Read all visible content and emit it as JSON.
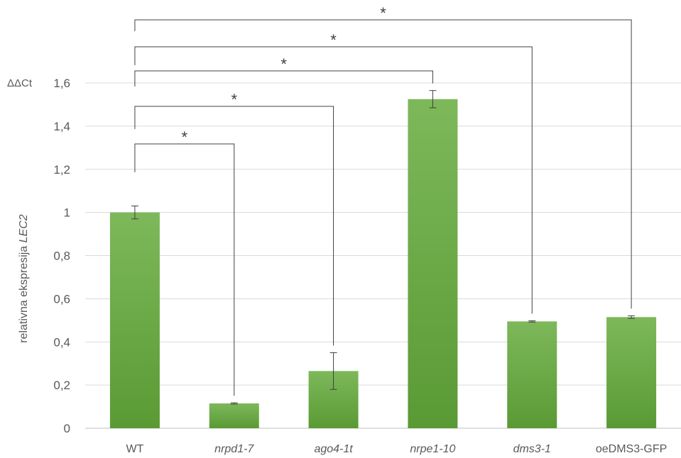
{
  "chart_data": {
    "type": "bar",
    "unit_label": "ΔΔCt",
    "ylabel": "relativna ekspresija ",
    "ylabel_italic": "LEC2",
    "ylim": [
      0,
      1.6
    ],
    "yticks": [
      "0",
      "0,2",
      "0,4",
      "0,6",
      "0,8",
      "1",
      "1,2",
      "1,4",
      "1,6"
    ],
    "grid": true,
    "categories": [
      {
        "label": "WT",
        "italic": false
      },
      {
        "label": "nrpd1-7",
        "italic": true
      },
      {
        "label": "ago4-1t",
        "italic": true
      },
      {
        "label": "nrpe1-10",
        "italic": true
      },
      {
        "label": "dms3-1",
        "italic": true
      },
      {
        "label": "oeDMS3-GFP",
        "italic": false
      }
    ],
    "values": [
      1.0,
      0.115,
      0.265,
      1.525,
      0.495,
      0.515
    ],
    "errors": [
      0.03,
      0.003,
      0.085,
      0.04,
      0.003,
      0.006
    ],
    "bar_color_top": "#7db85a",
    "bar_color_bottom": "#5a9a34",
    "significance": [
      {
        "from": "WT",
        "to": "nrpd1-7",
        "label": "*"
      },
      {
        "from": "WT",
        "to": "ago4-1t",
        "label": "*"
      },
      {
        "from": "WT",
        "to": "nrpe1-10",
        "label": "*"
      },
      {
        "from": "WT",
        "to": "dms3-1",
        "label": "*"
      },
      {
        "from": "WT",
        "to": "oeDMS3-GFP",
        "label": "*"
      }
    ]
  }
}
